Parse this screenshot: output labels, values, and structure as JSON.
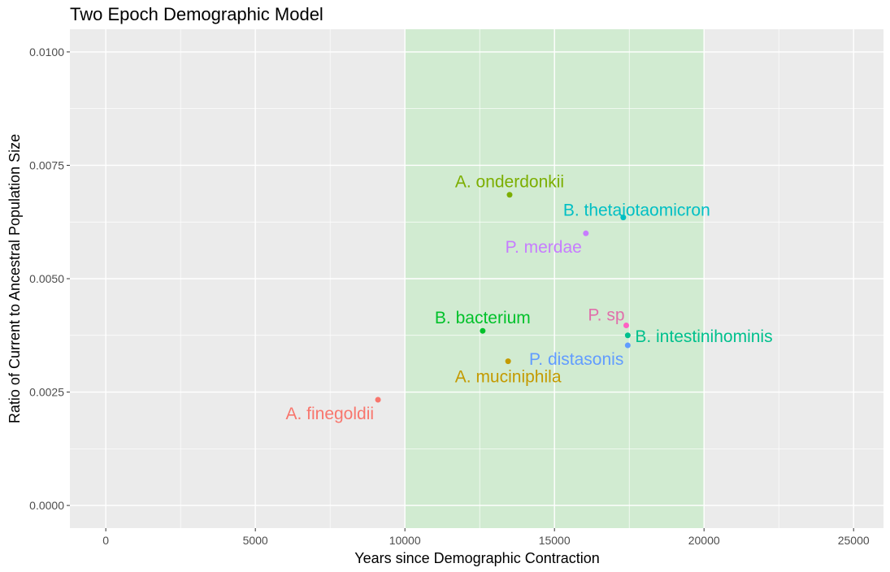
{
  "chart_data": {
    "type": "scatter",
    "title": "Two Epoch Demographic Model",
    "xlabel": "Years since Demographic Contraction",
    "ylabel": "Ratio of Current to Ancestral Population Size",
    "xlim": [
      -1200,
      26000
    ],
    "ylim": [
      -0.0005,
      0.0105
    ],
    "x_ticks": [
      0,
      5000,
      10000,
      15000,
      20000,
      25000
    ],
    "x_tick_labels": [
      "0",
      "5000",
      "10000",
      "15000",
      "20000",
      "25000"
    ],
    "y_ticks": [
      0.0,
      0.0025,
      0.005,
      0.0075,
      0.01
    ],
    "y_tick_labels": [
      "0.0000",
      "0.0025",
      "0.0050",
      "0.0075",
      "0.0100"
    ],
    "grid": true,
    "legend": "none",
    "shaded_region": {
      "x_start": 10000,
      "x_end": 20000,
      "color": "#d1ebd1"
    },
    "colors": {
      "panel": "#ebebeb",
      "grid": "#ffffff",
      "axis_text": "#4d4d4d",
      "text": "#000000"
    },
    "points": [
      {
        "label": "A. finegoldii",
        "x": 9100,
        "y": 0.00233,
        "color": "#f8766d",
        "label_pos": "below-left"
      },
      {
        "label": "A. muciniphila",
        "x": 13450,
        "y": 0.00318,
        "color": "#c49a00",
        "label_pos": "below"
      },
      {
        "label": "A. onderdonkii",
        "x": 13500,
        "y": 0.00685,
        "color": "#7cae00",
        "label_pos": "above"
      },
      {
        "label": "B. bacterium",
        "x": 12600,
        "y": 0.00385,
        "color": "#00c12a",
        "label_pos": "above"
      },
      {
        "label": "B. intestinihominis",
        "x": 17450,
        "y": 0.00375,
        "color": "#00c08d",
        "label_pos": "right"
      },
      {
        "label": "B. thetaiotaomicron",
        "x": 17300,
        "y": 0.00635,
        "color": "#00bfc4",
        "label_pos": "above-right"
      },
      {
        "label": "P. distasonis",
        "x": 17450,
        "y": 0.00353,
        "color": "#619cff",
        "label_pos": "below-left"
      },
      {
        "label": "P. merdae",
        "x": 16050,
        "y": 0.006,
        "color": "#c77cff",
        "label_pos": "below-left"
      },
      {
        "label": "P. sp",
        "x": 17400,
        "y": 0.00397,
        "color": "#ff61c3",
        "text_color": "#e06fab",
        "label_pos": "above-left"
      }
    ]
  }
}
